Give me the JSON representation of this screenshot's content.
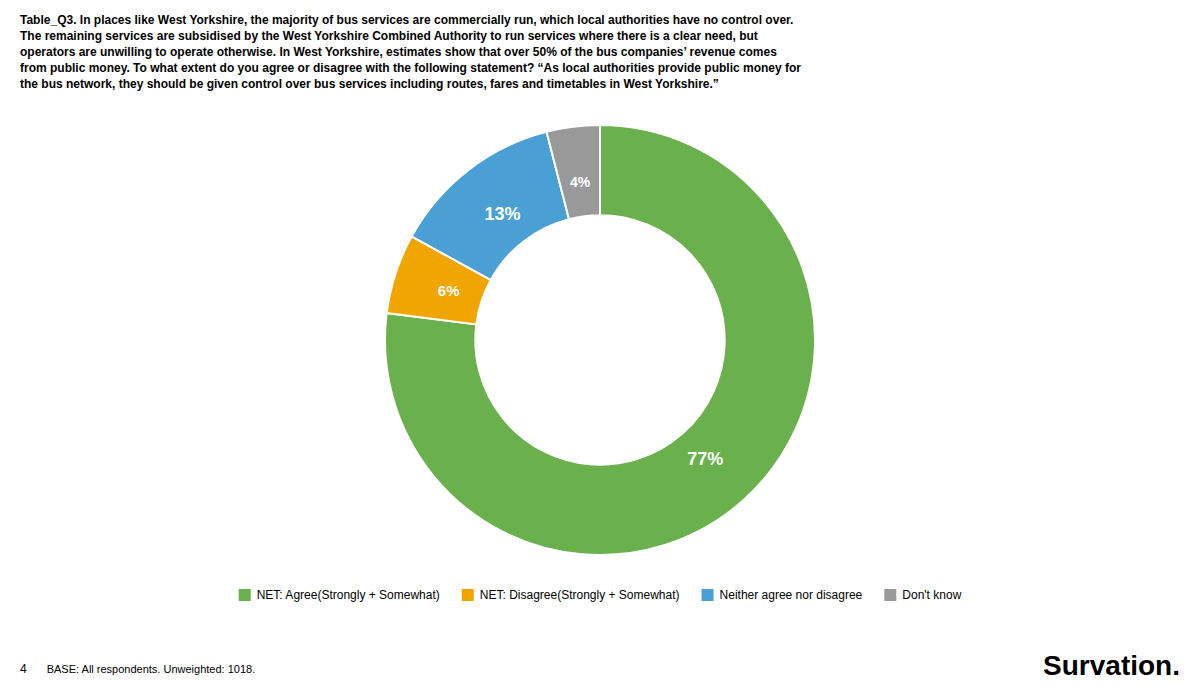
{
  "chart_data": {
    "type": "donut",
    "title": "Table_Q3. In places like West Yorkshire, the majority of bus services are commercially run, which local authorities have no control over.\nThe remaining services are subsidised by the West Yorkshire Combined Authority to run services where there is a clear need, but\noperators are unwilling to operate otherwise. In West Yorkshire, estimates show that over 50% of the bus companies’ revenue comes\nfrom public money. To what extent do you agree or disagree with the following statement? “As local authorities provide public money for\nthe bus network,  they should be given control over bus services including routes, fares and timetables in West Yorkshire.”",
    "categories": [
      "NET: Agree(Strongly + Somewhat)",
      "NET: Disagree(Strongly + Somewhat)",
      "Neither agree nor disagree",
      "Don't know"
    ],
    "values": [
      77,
      6,
      13,
      4
    ],
    "value_labels": [
      "77%",
      "6%",
      "13%",
      "4%"
    ],
    "colors": [
      "#6ab04c",
      "#f0a500",
      "#4a9fd4",
      "#999999"
    ],
    "data_labels": true,
    "legend": "bottom",
    "annotations": [
      "4",
      "BASE: All respondents. Unweighted: 1018.",
      "Survation."
    ]
  }
}
